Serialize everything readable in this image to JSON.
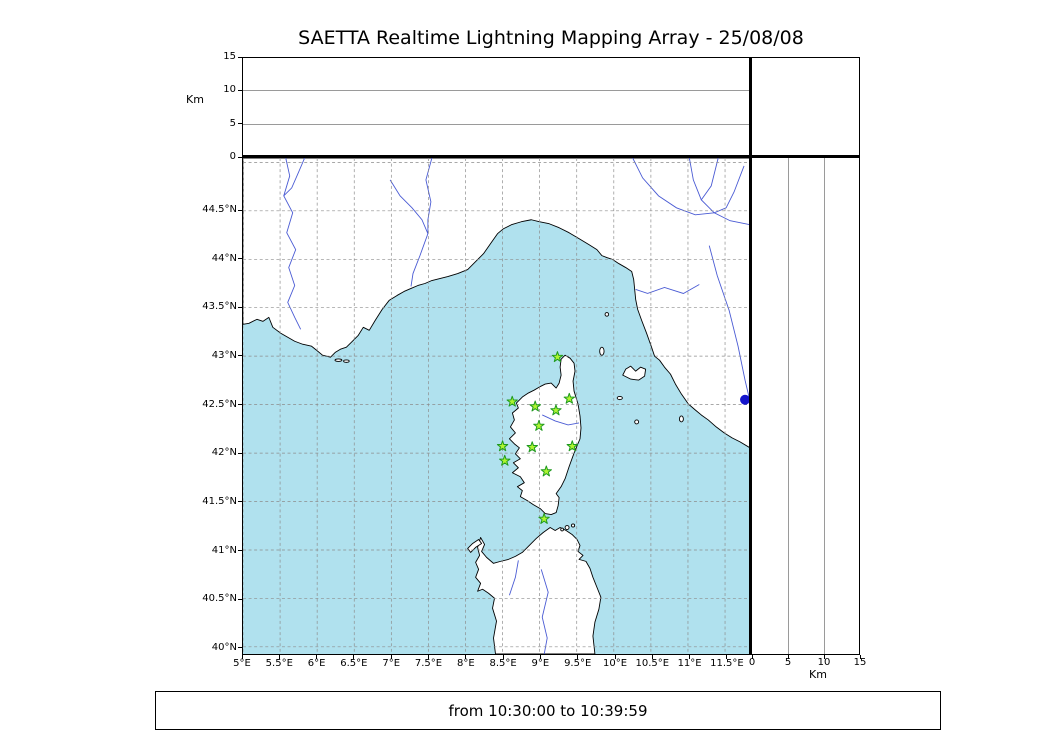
{
  "title": "SAETTA Realtime Lightning Mapping Array - 25/08/08",
  "caption": "from 10:30:00 to 10:39:59",
  "altitude_axis": {
    "label": "Km",
    "ticks": [
      0,
      5,
      10,
      15
    ],
    "max_km": 15
  },
  "map": {
    "lat_tick_labels": [
      "44.5°N",
      "44°N",
      "43.5°N",
      "43°N",
      "42.5°N",
      "42°N",
      "41.5°N",
      "41°N",
      "40.5°N",
      "40°N"
    ],
    "lat_ticks": [
      44.5,
      44,
      43.5,
      43,
      42.5,
      42,
      41.5,
      41,
      40.5,
      40
    ],
    "lon_tick_labels": [
      "5°E",
      "5.5°E",
      "6°E",
      "6.5°E",
      "7°E",
      "7.5°E",
      "8°E",
      "8.5°E",
      "9°E",
      "9.5°E",
      "10°E",
      "10.5°E",
      "11°E",
      "11.5°E"
    ],
    "lon_ticks": [
      5,
      5.5,
      6,
      6.5,
      7,
      7.5,
      8,
      8.5,
      9,
      9.5,
      10,
      10.5,
      11,
      11.5
    ],
    "extent": {
      "lon_min": 5,
      "lon_max": 11.84,
      "lat_min": 39.93,
      "lat_max": 45.04
    },
    "colors": {
      "sea": "#b0e1ee",
      "land": "#ffffff",
      "coast": "#000000",
      "river": "#4a5bd4",
      "grid": "#8c8c8c",
      "station_fill": "#aef531",
      "station_stroke": "#1f9a1f",
      "event_dot": "#1414cc"
    },
    "stations": [
      {
        "lon": 9.24,
        "lat": 42.99
      },
      {
        "lon": 8.63,
        "lat": 42.53
      },
      {
        "lon": 8.94,
        "lat": 42.48
      },
      {
        "lon": 9.22,
        "lat": 42.44
      },
      {
        "lon": 9.4,
        "lat": 42.56
      },
      {
        "lon": 8.99,
        "lat": 42.28
      },
      {
        "lon": 8.5,
        "lat": 42.07
      },
      {
        "lon": 8.9,
        "lat": 42.06
      },
      {
        "lon": 9.44,
        "lat": 42.07
      },
      {
        "lon": 8.53,
        "lat": 41.92
      },
      {
        "lon": 9.09,
        "lat": 41.81
      },
      {
        "lon": 9.06,
        "lat": 41.32
      }
    ],
    "event_dot": {
      "lon": 11.77,
      "lat": 42.55
    }
  }
}
